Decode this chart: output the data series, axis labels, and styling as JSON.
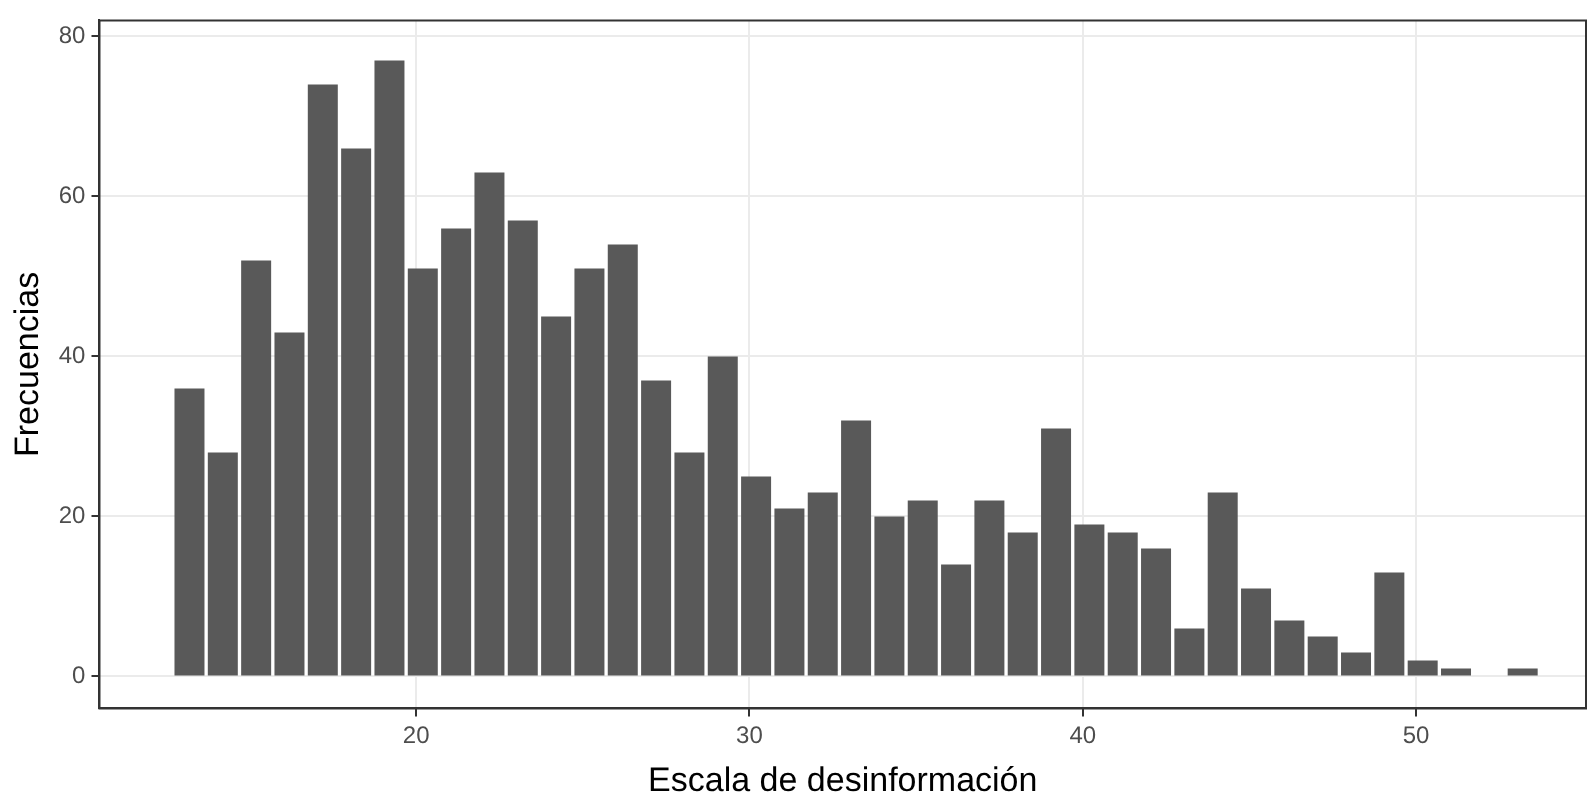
{
  "chart_data": {
    "type": "histogram",
    "xlabel": "Escala de desinformación",
    "ylabel": "Frecuencias",
    "color": "#595959",
    "bins": [
      12.7,
      13.7,
      14.7,
      15.7,
      16.7,
      17.7,
      18.7,
      19.7,
      20.7,
      21.7,
      22.7,
      23.7,
      24.7,
      25.7,
      26.7,
      27.7,
      28.7,
      29.7,
      30.7,
      31.7,
      32.7,
      33.7,
      34.7,
      35.7,
      36.7,
      37.7,
      38.7,
      39.7,
      40.7,
      41.7,
      42.7,
      43.7,
      44.7,
      45.7,
      46.7,
      47.7,
      48.7,
      49.7,
      50.7,
      51.7,
      52.7,
      53.7
    ],
    "values": [
      36,
      28,
      52,
      43,
      74,
      66,
      77,
      51,
      56,
      63,
      57,
      45,
      51,
      54,
      37,
      28,
      40,
      25,
      21,
      23,
      32,
      20,
      22,
      14,
      22,
      18,
      31,
      19,
      18,
      16,
      6,
      23,
      11,
      7,
      5,
      3,
      13,
      2,
      1,
      0,
      1
    ],
    "xlim": [
      10.5,
      55.1
    ],
    "xticks": [
      20,
      30,
      40,
      50
    ],
    "ylim": [
      -4,
      82
    ],
    "yticks": [
      0,
      20,
      40,
      60,
      80
    ],
    "grid": true
  }
}
